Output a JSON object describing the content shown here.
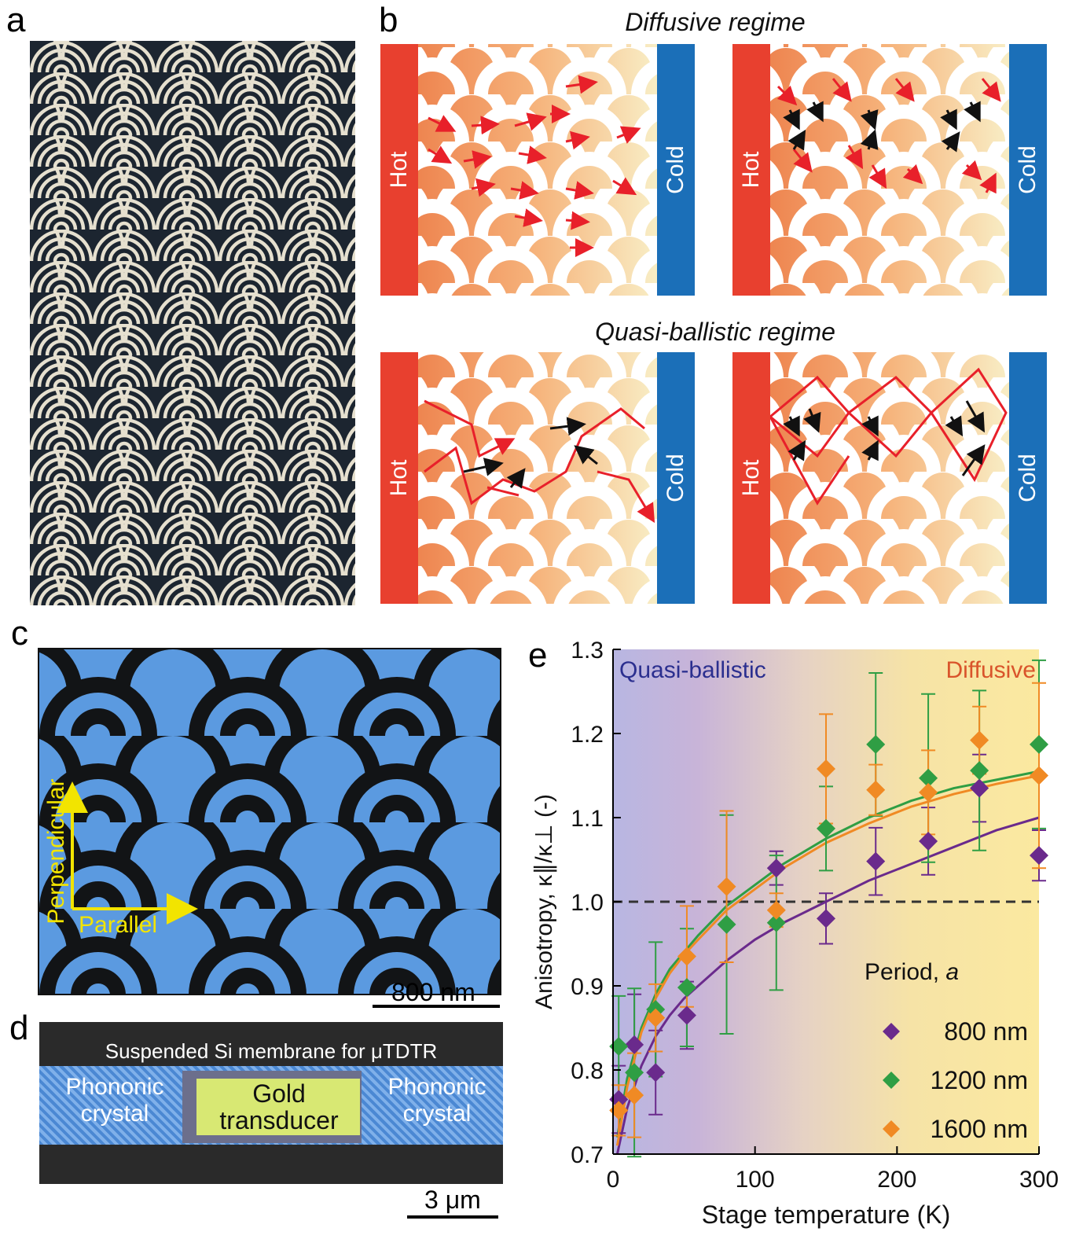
{
  "panels": {
    "a": "a",
    "b": "b",
    "c": "c",
    "d": "d",
    "e": "e"
  },
  "panel_b": {
    "diffusive_title": "Diffusive regime",
    "quasi_title": "Quasi-ballistic regime",
    "hot_label": "Hot",
    "cold_label": "Cold",
    "hot_color": "#e8402f",
    "cold_color": "#1b6fb8"
  },
  "panel_c": {
    "perpendicular_label": "Perpendicular",
    "parallel_label": "Parallel",
    "scale": "800 nm",
    "axis_color": "#f2e400"
  },
  "panel_d": {
    "title": "Suspended Si membrane for μTDTR",
    "left_label_1": "Phononic",
    "left_label_2": "crystal",
    "center_label_1": "Gold",
    "center_label_2": "transducer",
    "right_label_1": "Phononic",
    "right_label_2": "crystal",
    "scale": "3 μm"
  },
  "chart_data": {
    "type": "scatter",
    "xlabel": "Stage temperature (K)",
    "ylabel": "Anisotropy, κ∥/κ⊥ (-)",
    "xlim": [
      0,
      300
    ],
    "ylim": [
      0.7,
      1.3
    ],
    "xticks": [
      0,
      100,
      200,
      300
    ],
    "yticks": [
      0.7,
      0.8,
      0.9,
      1.0,
      1.1,
      1.2,
      1.3
    ],
    "reference_line": 1.0,
    "region_left_label": "Quasi-ballistic",
    "region_right_label": "Diffusive",
    "region_left_color": "#2b2f8f",
    "region_right_color": "#d9542b",
    "legend_title": "Period,",
    "legend_title_symbol": "a",
    "legend_position": "bottom-right",
    "series": [
      {
        "name": "800 nm",
        "color": "#6a2a8c",
        "x": [
          4,
          15,
          30,
          52,
          115,
          150,
          185,
          222,
          258,
          300
        ],
        "y": [
          0.765,
          0.83,
          0.797,
          0.865,
          1.04,
          0.98,
          1.048,
          1.072,
          1.135,
          1.055
        ],
        "err": [
          0.04,
          0.06,
          0.05,
          0.04,
          0.02,
          0.03,
          0.04,
          0.04,
          0.04,
          0.03
        ],
        "fit_x": [
          3,
          10,
          20,
          30,
          40,
          50,
          60,
          80,
          100,
          120,
          150,
          180,
          210,
          240,
          270,
          300
        ],
        "fit_y": [
          0.7,
          0.755,
          0.805,
          0.84,
          0.865,
          0.885,
          0.9,
          0.93,
          0.955,
          0.975,
          1.0,
          1.025,
          1.045,
          1.065,
          1.085,
          1.1
        ]
      },
      {
        "name": "1200 nm",
        "color": "#2f9e44",
        "x": [
          4,
          15,
          30,
          52,
          80,
          115,
          150,
          185,
          222,
          258,
          300
        ],
        "y": [
          0.828,
          0.797,
          0.872,
          0.898,
          0.973,
          0.975,
          1.087,
          1.187,
          1.147,
          1.156,
          1.187
        ],
        "err": [
          0.06,
          0.1,
          0.08,
          0.07,
          0.13,
          0.08,
          0.05,
          0.085,
          0.1,
          0.095,
          0.1
        ],
        "fit_x": [
          3,
          10,
          20,
          30,
          40,
          50,
          60,
          80,
          100,
          120,
          150,
          180,
          210,
          240,
          270,
          300
        ],
        "fit_y": [
          0.72,
          0.79,
          0.85,
          0.89,
          0.92,
          0.94,
          0.96,
          0.995,
          1.02,
          1.045,
          1.075,
          1.1,
          1.12,
          1.135,
          1.145,
          1.155
        ]
      },
      {
        "name": "1600 nm",
        "color": "#f08a24",
        "x": [
          4,
          15,
          30,
          52,
          80,
          115,
          150,
          185,
          222,
          258,
          300
        ],
        "y": [
          0.752,
          0.77,
          0.862,
          0.935,
          1.018,
          0.99,
          1.158,
          1.133,
          1.13,
          1.192,
          1.15
        ],
        "err": [
          0.03,
          0.05,
          0.04,
          0.06,
          0.09,
          0.02,
          0.065,
          0.03,
          0.05,
          0.04,
          0.11
        ],
        "fit_x": [
          3,
          10,
          20,
          30,
          40,
          50,
          60,
          80,
          100,
          120,
          150,
          180,
          210,
          240,
          270,
          300
        ],
        "fit_y": [
          0.71,
          0.78,
          0.845,
          0.885,
          0.915,
          0.937,
          0.955,
          0.99,
          1.015,
          1.04,
          1.07,
          1.093,
          1.113,
          1.128,
          1.14,
          1.15
        ]
      }
    ]
  }
}
